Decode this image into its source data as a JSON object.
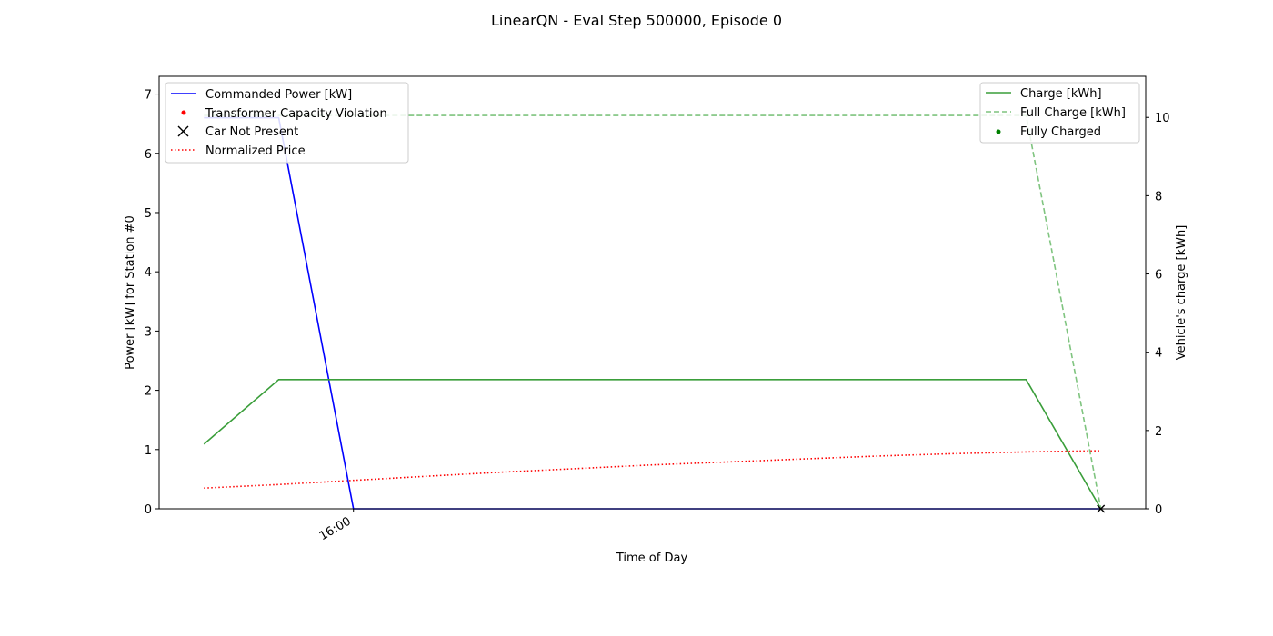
{
  "chart_data": {
    "type": "line",
    "title": "LinearQN - Eval Step 500000, Episode 0",
    "xlabel": "Time of Day",
    "x_tick_labels": [
      {
        "label": "16:00",
        "t": 2
      }
    ],
    "x_range": [
      -0.6,
      12.6
    ],
    "left_axis": {
      "label": "Power [kW] for Station #0",
      "ylim": [
        0,
        7.3
      ],
      "ticks": [
        0,
        1,
        2,
        3,
        4,
        5,
        6,
        7
      ]
    },
    "right_axis": {
      "label": "Vehicle's charge [kWh]",
      "ylim": [
        0,
        11.05
      ],
      "ticks": [
        0,
        2,
        4,
        6,
        8,
        10
      ]
    },
    "legend_left": {
      "placement": "upper left",
      "entries": [
        "Commanded Power [kW]",
        "Transformer Capacity Violation",
        "Car Not Present",
        "Normalized Price"
      ]
    },
    "legend_right": {
      "placement": "upper right",
      "entries": [
        "Charge [kWh]",
        "Full Charge [kWh]",
        "Fully Charged"
      ]
    },
    "series": [
      {
        "name": "Commanded Power [kW]",
        "axis": "left",
        "color": "#0000ff",
        "style": "solid",
        "x": [
          0,
          1,
          2,
          3,
          4,
          5,
          6,
          7,
          8,
          9,
          10,
          11,
          12
        ],
        "y": [
          6.6,
          6.6,
          0,
          0,
          0,
          0,
          0,
          0,
          0,
          0,
          0,
          0,
          0
        ]
      },
      {
        "name": "Normalized Price",
        "axis": "left",
        "color": "#ff0000",
        "style": "dotted",
        "x": [
          0,
          1,
          2,
          3,
          4,
          5,
          6,
          7,
          8,
          9,
          10,
          11,
          12
        ],
        "y": [
          0.35,
          0.41,
          0.48,
          0.55,
          0.62,
          0.68,
          0.74,
          0.79,
          0.84,
          0.89,
          0.93,
          0.96,
          0.98
        ]
      },
      {
        "name": "Charge [kWh]",
        "axis": "right",
        "color": "#3a9e3a",
        "style": "solid",
        "x": [
          0,
          1,
          2,
          3,
          4,
          5,
          6,
          7,
          8,
          9,
          10,
          11,
          12
        ],
        "y": [
          1.65,
          3.3,
          3.3,
          3.3,
          3.3,
          3.3,
          3.3,
          3.3,
          3.3,
          3.3,
          3.3,
          3.3,
          0
        ]
      },
      {
        "name": "Full Charge [kWh]",
        "axis": "right",
        "color": "#7fc47f",
        "style": "dashed",
        "x": [
          0,
          1,
          2,
          3,
          4,
          5,
          6,
          7,
          8,
          9,
          10,
          11,
          12
        ],
        "y": [
          10.05,
          10.05,
          10.05,
          10.05,
          10.05,
          10.05,
          10.05,
          10.05,
          10.05,
          10.05,
          10.05,
          10.05,
          0
        ]
      },
      {
        "name": "Car Not Present",
        "axis": "left",
        "color": "#000000",
        "style": "marker-x",
        "x": [
          12
        ],
        "y": [
          0
        ]
      }
    ]
  }
}
